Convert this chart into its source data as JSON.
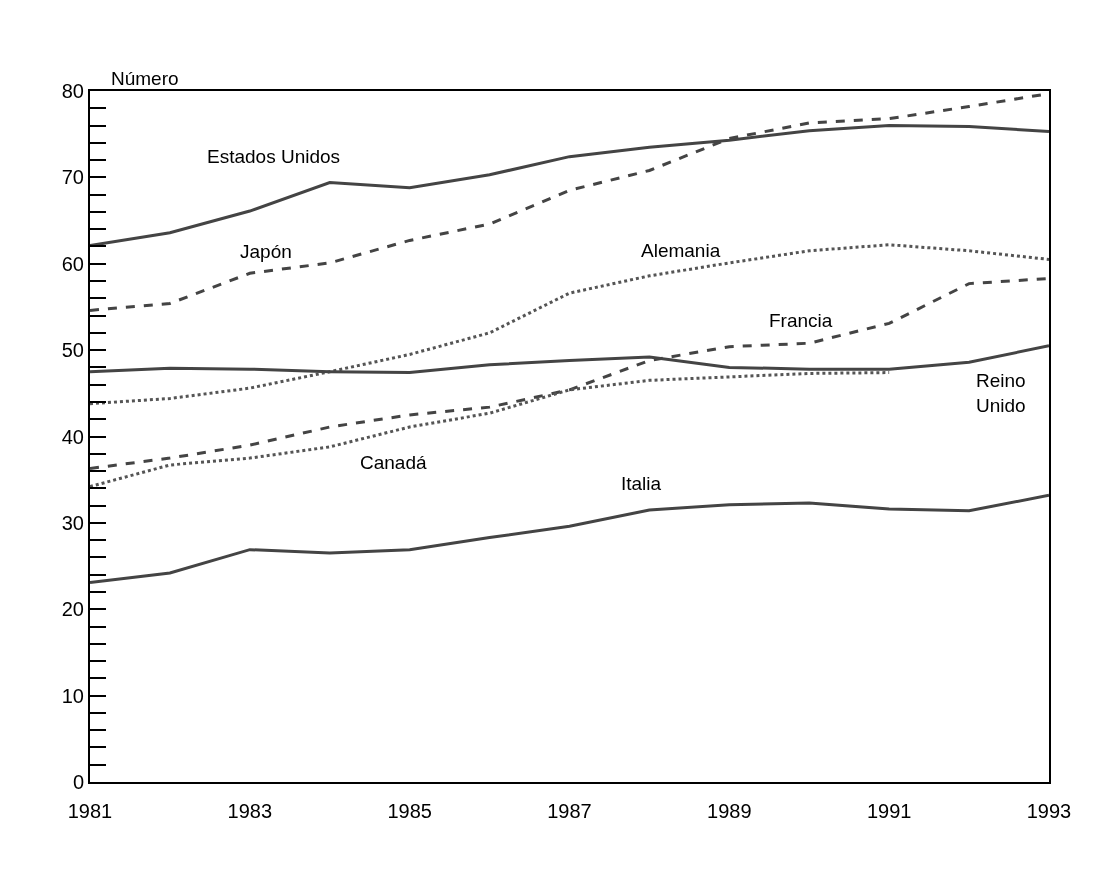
{
  "chart_data": {
    "type": "line",
    "ylabel": "Número",
    "x": [
      1981,
      1982,
      1983,
      1984,
      1985,
      1986,
      1987,
      1988,
      1989,
      1990,
      1991,
      1992,
      1993
    ],
    "series": [
      {
        "name": "Estados Unidos",
        "color": "#444444",
        "line_style": "solid",
        "values": [
          62.1,
          63.6,
          66.1,
          69.4,
          68.8,
          70.3,
          72.4,
          73.5,
          74.3,
          75.4,
          76.0,
          75.9,
          75.3
        ]
      },
      {
        "name": "Japón",
        "color": "#444444",
        "line_style": "dashed",
        "values": [
          54.6,
          55.4,
          58.9,
          60.1,
          62.7,
          64.6,
          68.5,
          70.8,
          74.5,
          76.3,
          76.8,
          78.2,
          79.7
        ]
      },
      {
        "name": "Alemania",
        "color": "#555555",
        "line_style": "dotted",
        "values": [
          43.8,
          44.4,
          45.6,
          47.5,
          49.5,
          52.0,
          56.6,
          58.6,
          60.1,
          61.5,
          62.2,
          61.5,
          60.5
        ]
      },
      {
        "name": "Francia",
        "color": "#444444",
        "line_style": "dashed",
        "values": [
          36.3,
          37.5,
          39.0,
          41.1,
          42.5,
          43.4,
          45.4,
          48.8,
          50.4,
          50.8,
          53.1,
          57.7,
          58.3
        ]
      },
      {
        "name": "Canadá",
        "color": "#555555",
        "line_style": "dotted",
        "values": [
          34.2,
          36.7,
          37.5,
          38.8,
          41.1,
          42.7,
          45.4,
          46.5,
          46.9,
          47.3,
          47.4,
          null,
          null
        ]
      },
      {
        "name": "Reino\nUnido",
        "color": "#444444",
        "line_style": "solid",
        "values": [
          47.5,
          47.9,
          47.8,
          47.5,
          47.4,
          48.3,
          48.8,
          49.2,
          48.0,
          47.8,
          47.8,
          48.6,
          50.5
        ]
      },
      {
        "name": "Italia",
        "color": "#444444",
        "line_style": "solid",
        "values": [
          23.1,
          24.2,
          26.9,
          26.5,
          26.9,
          28.3,
          29.6,
          31.5,
          32.1,
          32.3,
          31.6,
          31.4,
          33.2
        ]
      }
    ],
    "xlim": [
      1981,
      1993
    ],
    "xticks": [
      1981,
      1983,
      1985,
      1987,
      1989,
      1991,
      1993
    ],
    "ylim": [
      0,
      80
    ],
    "yticks": [
      0,
      {
        "value": 2,
        "label": null
      },
      {
        "value": 4,
        "label": null
      },
      {
        "value": 6,
        "label": null
      },
      {
        "value": 8,
        "label": null
      },
      10,
      {
        "value": 12,
        "label": null
      },
      {
        "value": 14,
        "label": null
      },
      {
        "value": 16,
        "label": null
      },
      {
        "value": 18,
        "label": null
      },
      20,
      {
        "value": 22,
        "label": null
      },
      {
        "value": 24,
        "label": null
      },
      {
        "value": 26,
        "label": null
      },
      {
        "value": 28,
        "label": null
      },
      30,
      {
        "value": 32,
        "label": null
      },
      {
        "value": 34,
        "label": null
      },
      {
        "value": 36,
        "label": null
      },
      {
        "value": 38,
        "label": null
      },
      40,
      {
        "value": 42,
        "label": null
      },
      {
        "value": 44,
        "label": null
      },
      {
        "value": 46,
        "label": null
      },
      {
        "value": 48,
        "label": null
      },
      50,
      {
        "value": 52,
        "label": null
      },
      {
        "value": 54,
        "label": null
      },
      {
        "value": 56,
        "label": null
      },
      {
        "value": 58,
        "label": null
      },
      60,
      {
        "value": 62,
        "label": null
      },
      {
        "value": 64,
        "label": null
      },
      {
        "value": 66,
        "label": null
      },
      {
        "value": 68,
        "label": null
      },
      70,
      {
        "value": 72,
        "label": null
      },
      {
        "value": 74,
        "label": null
      },
      {
        "value": 76,
        "label": null
      },
      {
        "value": 78,
        "label": null
      },
      80
    ],
    "legend": false,
    "marker": "none"
  }
}
